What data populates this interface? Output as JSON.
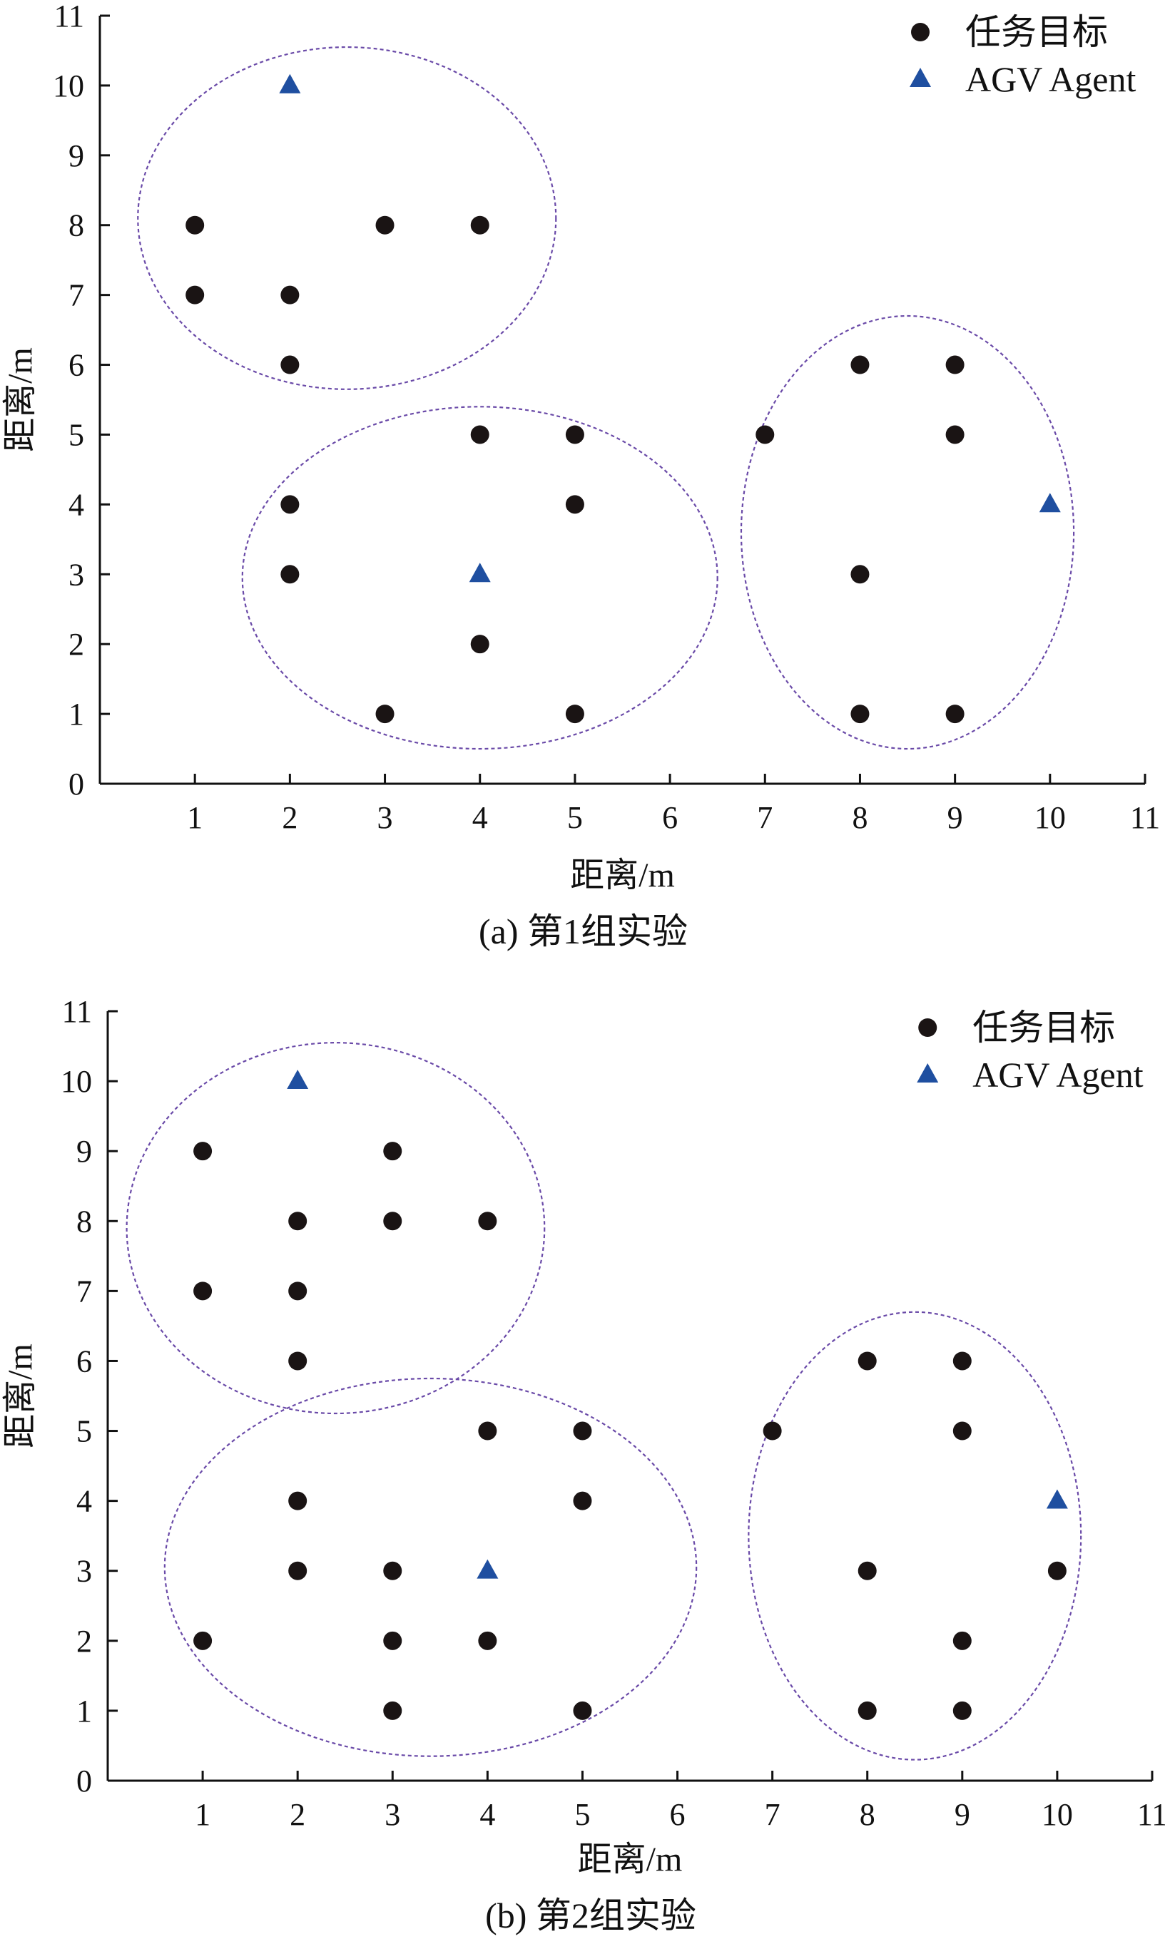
{
  "chart_data": [
    {
      "type": "scatter",
      "caption": "(a) 第1组实验",
      "xlabel": "距离/m",
      "ylabel": "距离/m",
      "xlim": [
        0,
        11
      ],
      "ylim": [
        0,
        11
      ],
      "xticks": [
        "1",
        "2",
        "3",
        "4",
        "5",
        "6",
        "7",
        "8",
        "9",
        "10",
        "11"
      ],
      "yticks": [
        "0",
        "1",
        "2",
        "3",
        "4",
        "5",
        "6",
        "7",
        "8",
        "9",
        "10",
        "11"
      ],
      "grid": false,
      "legend_position": "top-right",
      "series": [
        {
          "name": "任务目标",
          "marker": "circle",
          "color": "#1a1414",
          "points": [
            [
              1,
              8
            ],
            [
              1,
              7
            ],
            [
              2,
              7
            ],
            [
              2,
              6
            ],
            [
              3,
              8
            ],
            [
              4,
              8
            ],
            [
              2,
              4
            ],
            [
              2,
              3
            ],
            [
              3,
              1
            ],
            [
              4,
              5
            ],
            [
              4,
              2
            ],
            [
              5,
              5
            ],
            [
              5,
              4
            ],
            [
              5,
              1
            ],
            [
              7,
              5
            ],
            [
              8,
              6
            ],
            [
              8,
              3
            ],
            [
              8,
              1
            ],
            [
              9,
              6
            ],
            [
              9,
              5
            ],
            [
              9,
              1
            ]
          ]
        },
        {
          "name": "AGV Agent",
          "marker": "triangle",
          "color": "#1f4fa0",
          "points": [
            [
              2,
              10
            ],
            [
              4,
              3
            ],
            [
              10,
              4
            ]
          ]
        }
      ],
      "clusters": [
        {
          "cx": 2.6,
          "cy": 8.1,
          "rx": 2.2,
          "ry": 2.45
        },
        {
          "cx": 4.0,
          "cy": 2.95,
          "rx": 2.5,
          "ry": 2.45
        },
        {
          "cx": 8.5,
          "cy": 3.6,
          "rx": 1.75,
          "ry": 3.1
        }
      ]
    },
    {
      "type": "scatter",
      "caption": "(b) 第2组实验",
      "xlabel": "距离/m",
      "ylabel": "距离/m",
      "xlim": [
        0,
        11
      ],
      "ylim": [
        0,
        11
      ],
      "xticks": [
        "1",
        "2",
        "3",
        "4",
        "5",
        "6",
        "7",
        "8",
        "9",
        "10",
        "11"
      ],
      "yticks": [
        "0",
        "1",
        "2",
        "3",
        "4",
        "5",
        "6",
        "7",
        "8",
        "9",
        "10",
        "11"
      ],
      "grid": false,
      "legend_position": "top-right",
      "series": [
        {
          "name": "任务目标",
          "marker": "circle",
          "color": "#1a1414",
          "points": [
            [
              1,
              9
            ],
            [
              1,
              7
            ],
            [
              2,
              8
            ],
            [
              2,
              7
            ],
            [
              2,
              6
            ],
            [
              3,
              9
            ],
            [
              3,
              8
            ],
            [
              4,
              8
            ],
            [
              1,
              2
            ],
            [
              2,
              4
            ],
            [
              2,
              3
            ],
            [
              3,
              3
            ],
            [
              3,
              2
            ],
            [
              3,
              1
            ],
            [
              4,
              5
            ],
            [
              4,
              2
            ],
            [
              5,
              5
            ],
            [
              5,
              4
            ],
            [
              5,
              1
            ],
            [
              7,
              5
            ],
            [
              8,
              6
            ],
            [
              8,
              3
            ],
            [
              8,
              1
            ],
            [
              9,
              6
            ],
            [
              9,
              5
            ],
            [
              9,
              2
            ],
            [
              9,
              1
            ],
            [
              10,
              3
            ]
          ]
        },
        {
          "name": "AGV Agent",
          "marker": "triangle",
          "color": "#1f4fa0",
          "points": [
            [
              2,
              10
            ],
            [
              4,
              3
            ],
            [
              10,
              4
            ]
          ]
        }
      ],
      "clusters": [
        {
          "cx": 2.4,
          "cy": 7.9,
          "rx": 2.2,
          "ry": 2.65
        },
        {
          "cx": 3.4,
          "cy": 3.05,
          "rx": 2.8,
          "ry": 2.7
        },
        {
          "cx": 8.5,
          "cy": 3.5,
          "rx": 1.75,
          "ry": 3.2
        }
      ]
    }
  ]
}
